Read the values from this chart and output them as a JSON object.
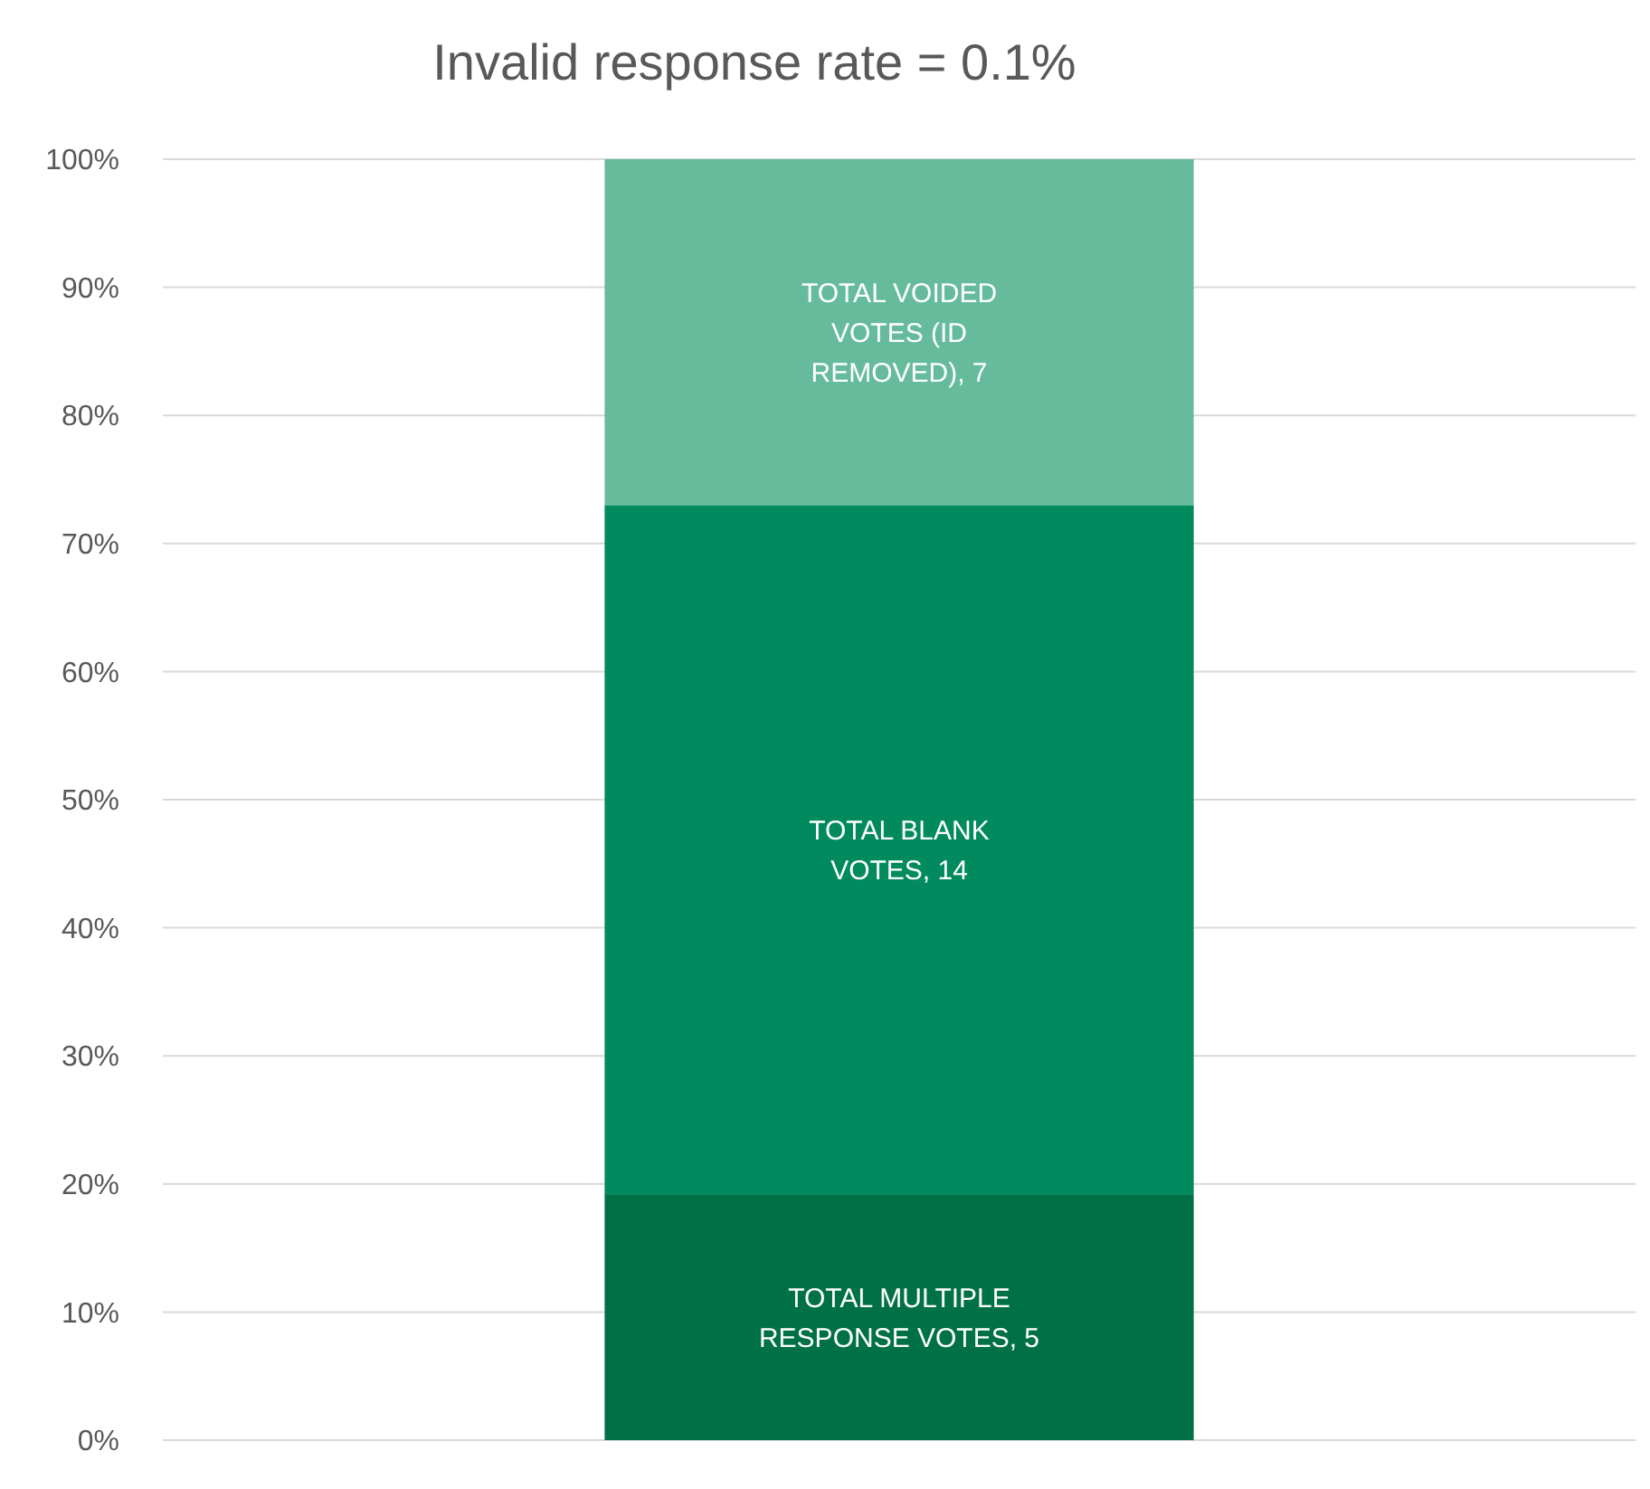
{
  "chart_data": {
    "type": "bar",
    "stacked": true,
    "title": "Invalid response rate = 0.1%",
    "categories": [
      null
    ],
    "series": [
      {
        "color": "#007147",
        "values": [
          19.2
        ]
      },
      {
        "color": "#008a5e",
        "values": [
          53.8
        ]
      },
      {
        "color": "#66bb9c",
        "values": [
          27.0
        ]
      }
    ],
    "annotations": [
      "TOTAL MULTIPLE RESPONSE VOTES, 5",
      "TOTAL BLANK VOTES, 14",
      "TOTAL VOIDED VOTES (ID REMOVED), 7"
    ],
    "ylim": [
      0,
      100
    ],
    "yticks": [
      {
        "value": 0,
        "label": "0%"
      },
      {
        "value": 10,
        "label": "10%"
      },
      {
        "value": 20,
        "label": "20%"
      },
      {
        "value": 30,
        "label": "30%"
      },
      {
        "value": 40,
        "label": "40%"
      },
      {
        "value": 50,
        "label": "50%"
      },
      {
        "value": 60,
        "label": "60%"
      },
      {
        "value": 70,
        "label": "70%"
      },
      {
        "value": 80,
        "label": "80%"
      },
      {
        "value": 90,
        "label": "90%"
      },
      {
        "value": 100,
        "label": "100%"
      }
    ],
    "grid": "y"
  }
}
